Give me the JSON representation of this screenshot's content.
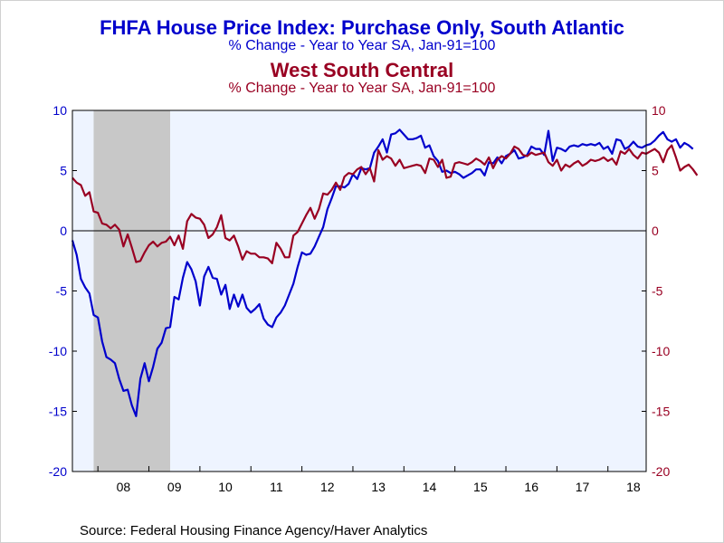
{
  "chart_data": {
    "type": "line",
    "title": "FHFA House Price Index: Purchase Only, South Atlantic",
    "title_sub": "% Change - Year to Year    SA, Jan-91=100",
    "title2": "West South Central",
    "title2_sub": "% Change - Year to Year    SA, Jan-91=100",
    "source": "Source:  Federal Housing Finance Agency/Haver Analytics",
    "x_tick_labels": [
      "08",
      "09",
      "10",
      "11",
      "12",
      "13",
      "14",
      "15",
      "16",
      "17",
      "18"
    ],
    "x_range": [
      "2007-07",
      "2018-10"
    ],
    "y_left_ticks": [
      "10",
      "5",
      "0",
      "-5",
      "-10",
      "-15",
      "-20"
    ],
    "y_right_ticks": [
      "10",
      "5",
      "0",
      "-5",
      "-10",
      "-15",
      "-20"
    ],
    "ylim": [
      -20,
      10
    ],
    "recession_shading": {
      "start": "2007-12",
      "end": "2009-06",
      "color": "#c8c8c8"
    },
    "plot_background": "#eef4ff",
    "zero_line": true,
    "series": [
      {
        "name": "South Atlantic",
        "color": "#0000cc",
        "axis": "left",
        "start": "2007-07",
        "values": [
          -0.8,
          -2.0,
          -4.0,
          -4.7,
          -5.2,
          -7.0,
          -7.2,
          -9.2,
          -10.5,
          -10.7,
          -11.0,
          -12.3,
          -13.3,
          -13.2,
          -14.5,
          -15.4,
          -12.3,
          -11.0,
          -12.5,
          -11.3,
          -9.8,
          -9.3,
          -8.1,
          -8.0,
          -5.5,
          -5.7,
          -3.9,
          -2.6,
          -3.2,
          -4.2,
          -6.2,
          -3.8,
          -3.0,
          -3.9,
          -4.0,
          -5.3,
          -4.5,
          -6.5,
          -5.3,
          -6.3,
          -5.3,
          -6.4,
          -6.8,
          -6.5,
          -6.1,
          -7.3,
          -7.8,
          -8.0,
          -7.2,
          -6.8,
          -6.2,
          -5.3,
          -4.4,
          -3.0,
          -1.8,
          -2.0,
          -1.9,
          -1.3,
          -0.5,
          0.3,
          1.8,
          2.7,
          3.7,
          3.7,
          3.6,
          3.9,
          4.7,
          4.3,
          5.2,
          5.1,
          5.2,
          6.5,
          7.0,
          7.6,
          6.5,
          8.0,
          8.1,
          8.4,
          8.0,
          7.6,
          7.6,
          7.7,
          7.9,
          6.9,
          7.1,
          6.2,
          5.8,
          4.9,
          5.0,
          4.8,
          4.9,
          4.7,
          4.4,
          4.6,
          4.8,
          5.1,
          5.1,
          4.6,
          5.7,
          5.6,
          6.1,
          5.6,
          6.2,
          6.4,
          6.7,
          6.0,
          6.1,
          6.3,
          7.0,
          6.8,
          6.8,
          6.3,
          8.3,
          5.8,
          6.9,
          6.8,
          6.6,
          7.0,
          7.1,
          7.0,
          7.2,
          7.1,
          7.2,
          7.1,
          7.3,
          6.8,
          7.0,
          6.4,
          7.6,
          7.5,
          6.8,
          7.0,
          7.4,
          7.0,
          6.9,
          7.1,
          7.2,
          7.5,
          7.9,
          8.2,
          7.6,
          7.4,
          7.6,
          6.9,
          7.3,
          7.1,
          6.8
        ]
      },
      {
        "name": "West South Central",
        "color": "#990022",
        "axis": "right",
        "start": "2007-07",
        "values": [
          4.4,
          4.0,
          3.8,
          2.9,
          3.2,
          1.6,
          1.5,
          0.6,
          0.5,
          0.2,
          0.5,
          0.1,
          -1.3,
          -0.3,
          -1.4,
          -2.6,
          -2.5,
          -1.8,
          -1.2,
          -0.9,
          -1.3,
          -1.0,
          -0.9,
          -0.5,
          -1.2,
          -0.4,
          -1.5,
          0.8,
          1.4,
          1.1,
          1.0,
          0.5,
          -0.6,
          -0.3,
          0.3,
          1.3,
          -0.6,
          -0.8,
          -0.4,
          -1.3,
          -2.4,
          -1.7,
          -1.9,
          -1.9,
          -2.2,
          -2.2,
          -2.3,
          -2.7,
          -1.0,
          -1.5,
          -2.2,
          -2.2,
          -0.4,
          -0.1,
          0.6,
          1.3,
          1.9,
          1.0,
          1.8,
          3.1,
          3.0,
          3.4,
          4.0,
          3.4,
          4.5,
          4.8,
          4.7,
          5.1,
          5.3,
          4.7,
          5.2,
          4.1,
          6.7,
          5.9,
          6.2,
          6.0,
          5.4,
          5.9,
          5.2,
          5.3,
          5.4,
          5.5,
          5.4,
          4.8,
          6.0,
          5.9,
          5.3,
          5.9,
          4.4,
          4.5,
          5.6,
          5.7,
          5.6,
          5.5,
          5.7,
          6.0,
          5.8,
          5.5,
          6.1,
          5.2,
          5.9,
          6.2,
          6.0,
          6.4,
          7.0,
          6.8,
          6.3,
          6.2,
          6.5,
          6.3,
          6.4,
          6.5,
          5.7,
          5.4,
          5.9,
          5.0,
          5.5,
          5.3,
          5.6,
          5.8,
          5.4,
          5.6,
          5.9,
          5.8,
          5.9,
          6.1,
          5.8,
          6.0,
          5.5,
          6.6,
          6.4,
          6.8,
          6.3,
          6.0,
          6.5,
          6.4,
          6.6,
          6.8,
          6.5,
          5.7,
          6.7,
          7.1,
          6.1,
          5.0,
          5.3,
          5.5,
          5.1,
          4.6
        ]
      }
    ]
  }
}
